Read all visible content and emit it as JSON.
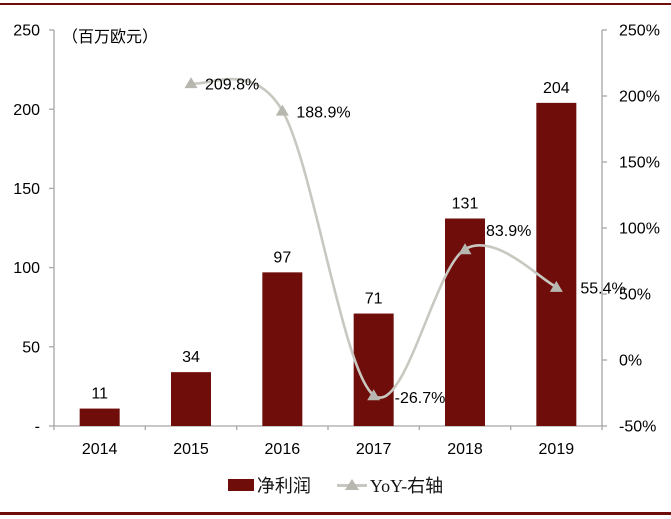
{
  "chart": {
    "colors": {
      "bar": "#6F0D0B",
      "line": "#C9C8C0",
      "marker": "#B8B7AF",
      "axis": "#A6A6A6",
      "text": "#000000",
      "border_rule": "#6F0D0B"
    }
  },
  "chart_data": {
    "type": "combo-bar-line",
    "title": "",
    "categories": [
      "2014",
      "2015",
      "2016",
      "2017",
      "2018",
      "2019"
    ],
    "series": [
      {
        "name": "净利润",
        "type": "bar",
        "axis": "left",
        "values": [
          11,
          34,
          97,
          71,
          131,
          204
        ],
        "labels": [
          "11",
          "34",
          "97",
          "71",
          "131",
          "204"
        ],
        "color": "#6F0D0B"
      },
      {
        "name": "YoY-右轴",
        "type": "line",
        "axis": "right",
        "values": [
          null,
          209.8,
          188.9,
          -26.7,
          83.9,
          55.4
        ],
        "labels": [
          null,
          "209.8%",
          "188.9%",
          "-26.7%",
          "83.9%",
          "55.4%"
        ],
        "color": "#C9C8C0"
      }
    ],
    "left_axis": {
      "title": "（百万欧元）",
      "min": 0,
      "max": 250,
      "ticks": [
        {
          "value": 0,
          "label": "-"
        },
        {
          "value": 50,
          "label": "50"
        },
        {
          "value": 100,
          "label": "100"
        },
        {
          "value": 150,
          "label": "150"
        },
        {
          "value": 200,
          "label": "200"
        },
        {
          "value": 250,
          "label": "250"
        }
      ]
    },
    "right_axis": {
      "min": -50,
      "max": 250,
      "ticks": [
        {
          "value": -50,
          "label": "-50%"
        },
        {
          "value": 0,
          "label": "0%"
        },
        {
          "value": 50,
          "label": "50%"
        },
        {
          "value": 100,
          "label": "100%"
        },
        {
          "value": 150,
          "label": "150%"
        },
        {
          "value": 200,
          "label": "200%"
        },
        {
          "value": 250,
          "label": "250%"
        }
      ]
    },
    "grid": false,
    "legend_position": "bottom"
  }
}
